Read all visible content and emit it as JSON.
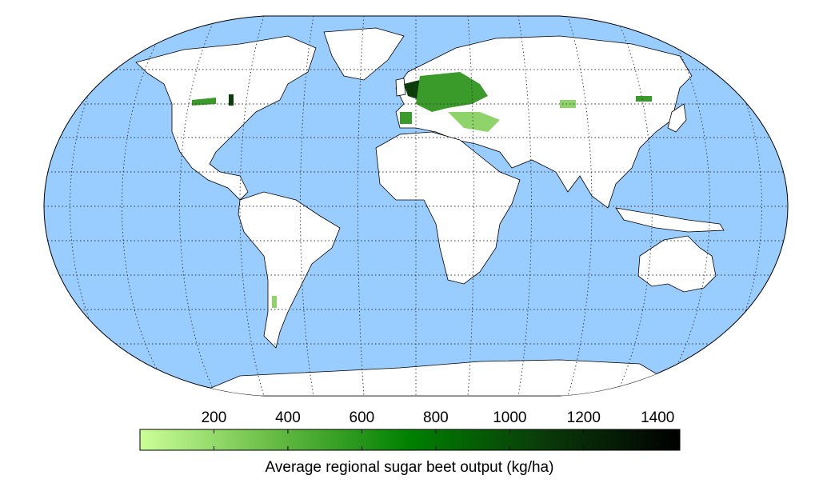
{
  "colorbar": {
    "label": "Average regional sugar beet output (kg/ha)",
    "range": [
      0,
      1460
    ],
    "ticks": [
      200,
      400,
      600,
      800,
      1000,
      1200,
      1400
    ],
    "colors": [
      "#ccff99",
      "#66bb44",
      "#008000",
      "#0a3a0a",
      "#000000"
    ]
  }
}
